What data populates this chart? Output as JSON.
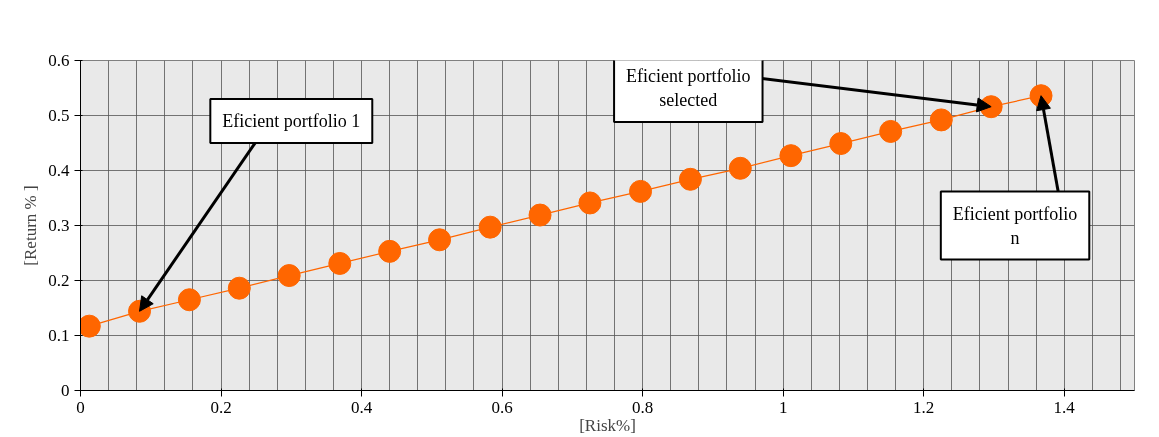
{
  "chart_data": {
    "type": "line",
    "xlabel": "[Risk%]",
    "ylabel": "[Return % ]",
    "x": [
      0.0125,
      0.084,
      0.155,
      0.226,
      0.297,
      0.369,
      0.44,
      0.511,
      0.583,
      0.654,
      0.725,
      0.797,
      0.868,
      0.939,
      1.011,
      1.082,
      1.153,
      1.225,
      1.296,
      1.367
    ],
    "series": [
      {
        "color": "#ff6600",
        "values": [
          0.117,
          0.144,
          0.165,
          0.186,
          0.209,
          0.231,
          0.253,
          0.274,
          0.297,
          0.319,
          0.341,
          0.362,
          0.384,
          0.404,
          0.427,
          0.449,
          0.471,
          0.492,
          0.516,
          0.536
        ]
      }
    ],
    "marker": "circle",
    "grid": true,
    "xlim": [
      0,
      1.5
    ],
    "ylim": [
      0,
      0.6
    ],
    "xticks": [
      0,
      0.2,
      0.4,
      0.6,
      0.8,
      1,
      1.2,
      1.4
    ],
    "yticks": [
      0,
      0.1,
      0.2,
      0.3,
      0.4,
      0.5,
      0.6
    ],
    "annotations": [
      {
        "text": "Eficient portfolio 1",
        "x": 0.084,
        "y": 0.144
      },
      {
        "text": "Eficient portfolio\nselected",
        "x": 1.296,
        "y": 0.516
      },
      {
        "text": "Eficient portfolio\nn",
        "x": 1.367,
        "y": 0.536
      }
    ]
  }
}
